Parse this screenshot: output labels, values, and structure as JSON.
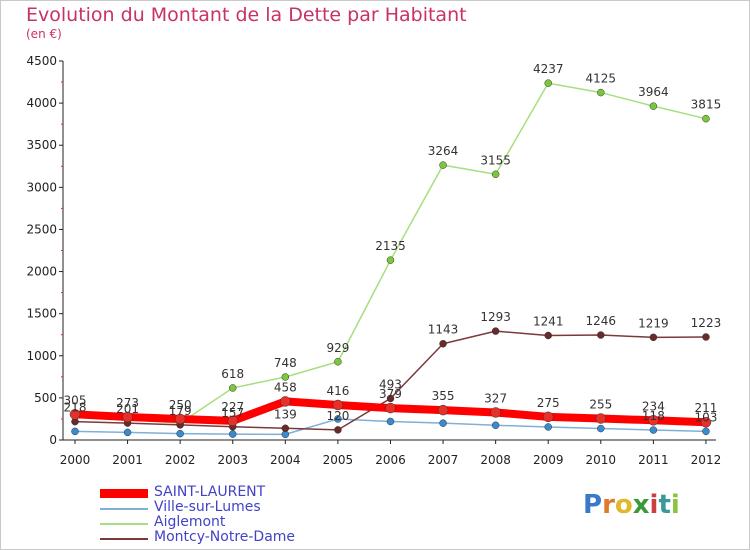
{
  "header": {
    "title": "Evolution du Montant de la Dette par Habitant",
    "subtitle": "(en €)"
  },
  "brand": {
    "letters": [
      "P",
      "r",
      "o",
      "x",
      "i",
      "t",
      "i"
    ],
    "colors": [
      "#3a78c9",
      "#e07a2a",
      "#e0b82a",
      "#3a9a3a",
      "#c84040",
      "#3a9a9a",
      "#8ac43a"
    ]
  },
  "chart_data": {
    "type": "line",
    "title": "Evolution du Montant de la Dette par Habitant",
    "subtitle": "(en €)",
    "xlabel": "",
    "ylabel": "",
    "categories": [
      "2000",
      "2001",
      "2002",
      "2003",
      "2004",
      "2005",
      "2006",
      "2007",
      "2008",
      "2009",
      "2010",
      "2011",
      "2012"
    ],
    "ylim": [
      0,
      4500
    ],
    "yticks": [
      0,
      500,
      1000,
      1500,
      2000,
      2500,
      3000,
      3500,
      4000,
      4500
    ],
    "grid": false,
    "legend_position": "bottom-left",
    "series": [
      {
        "name": "SAINT-LAURENT",
        "color": "#ff0000",
        "width": 8,
        "marker": "#e8302a",
        "values": [
          305,
          273,
          250,
          227,
          458,
          416,
          379,
          355,
          327,
          275,
          255,
          234,
          211
        ],
        "labels": [
          305,
          273,
          250,
          227,
          458,
          416,
          379,
          355,
          327,
          275,
          255,
          234,
          211
        ]
      },
      {
        "name": "Ville-sur-Lumes",
        "color": "#7fb0d8",
        "width": 1.5,
        "marker": "#3a8ad0",
        "values": [
          102,
          90,
          75,
          70,
          67,
          250,
          220,
          200,
          175,
          155,
          136,
          118,
          103
        ],
        "labels": [
          null,
          null,
          null,
          null,
          null,
          null,
          null,
          null,
          null,
          null,
          null,
          118,
          103
        ]
      },
      {
        "name": "Aiglemont",
        "color": "#a8de80",
        "width": 1.5,
        "marker": "#7ac83a",
        "values": [
          280,
          240,
          200,
          618,
          748,
          929,
          2135,
          3264,
          3155,
          4237,
          4125,
          3964,
          3815
        ],
        "labels": [
          null,
          null,
          null,
          618,
          748,
          929,
          2135,
          3264,
          3155,
          4237,
          4125,
          3964,
          3815
        ]
      },
      {
        "name": "Montcy-Notre-Dame",
        "color": "#7a3a3a",
        "width": 1.5,
        "marker": "#6a2a2a",
        "values": [
          218,
          201,
          179,
          157,
          139,
          120,
          493,
          1143,
          1293,
          1241,
          1246,
          1219,
          1223
        ],
        "labels": [
          218,
          201,
          179,
          157,
          139,
          120,
          493,
          1143,
          1293,
          1241,
          1246,
          1219,
          1223
        ]
      }
    ]
  }
}
